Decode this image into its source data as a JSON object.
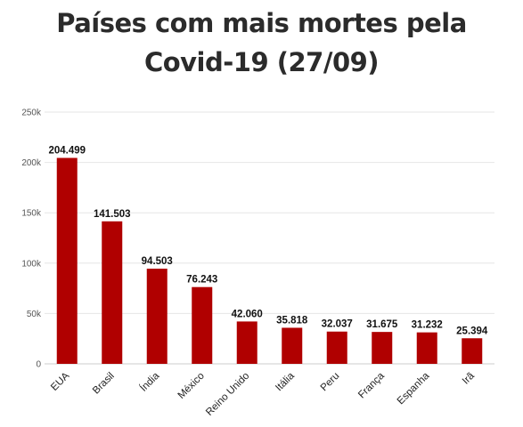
{
  "chart_data": {
    "type": "bar",
    "title_lines": [
      "Países com mais mortes pela",
      "Covid-19 (27/09)"
    ],
    "categories": [
      "EUA",
      "Brasil",
      "Índia",
      "México",
      "Reino Unido",
      "Itália",
      "Peru",
      "França",
      "Espanha",
      "Irã"
    ],
    "values": [
      204499,
      141503,
      94503,
      76243,
      42060,
      35818,
      32037,
      31675,
      31232,
      25394
    ],
    "data_labels": [
      "204.499",
      "141.503",
      "94.503",
      "76.243",
      "42.060",
      "35.818",
      "32.037",
      "31.675",
      "31.232",
      "25.394"
    ],
    "ylim": [
      0,
      250000
    ],
    "yticks": [
      0,
      50000,
      100000,
      150000,
      200000,
      250000
    ],
    "ytick_labels": [
      "0",
      "50k",
      "100k",
      "150k",
      "200k",
      "250k"
    ],
    "xlabel": "",
    "ylabel": "",
    "grid": true,
    "legend": false,
    "bar_color": "#b00000"
  }
}
